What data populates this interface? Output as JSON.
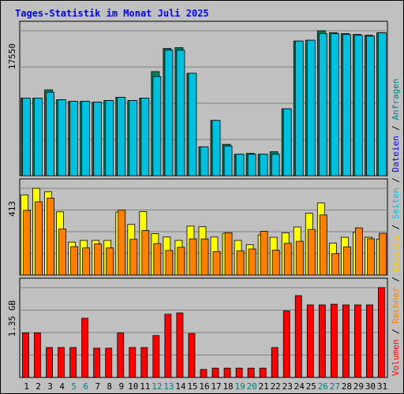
{
  "title": "Tages-Statistik im Monat Juli 2025",
  "colors": {
    "background": "#c0c0c0",
    "title": "#0000ff",
    "weekday_label": "#000000",
    "weekend_label": "#008080",
    "hits": "#00805c",
    "files": "#0000ff",
    "pages": "#00c0e0",
    "visits": "#ffff00",
    "sites": "#ff8000",
    "kbytes": "#ff0000"
  },
  "legend": {
    "top": [
      {
        "text": "Anfragen",
        "color": "#008080"
      },
      {
        "text": "Dateien",
        "color": "#0000ff"
      },
      {
        "text": "Seiten",
        "color": "#00c0e0"
      },
      {
        "text": "Besuche",
        "color": "#ffcc00"
      },
      {
        "text": "Rechner",
        "color": "#ff8000"
      },
      {
        "text": "Volumen",
        "color": "#ff0000"
      }
    ],
    "separator": "/"
  },
  "chart_data": [
    {
      "type": "bar",
      "panel": "top",
      "scale_label": "17550",
      "ylim": [
        0,
        17550
      ],
      "categories": [
        "1",
        "2",
        "3",
        "4",
        "5",
        "6",
        "7",
        "8",
        "9",
        "10",
        "11",
        "12",
        "13",
        "14",
        "15",
        "16",
        "17",
        "18",
        "19",
        "20",
        "21",
        "22",
        "23",
        "24",
        "25",
        "26",
        "27",
        "28",
        "29",
        "30",
        "31"
      ],
      "weekend_days": [
        "5",
        "6",
        "12",
        "13",
        "19",
        "20",
        "26",
        "27"
      ],
      "series": [
        {
          "name": "Anfragen",
          "values": [
            9400,
            9400,
            10400,
            9200,
            9000,
            9000,
            8900,
            9100,
            9500,
            9100,
            9400,
            12600,
            15400,
            15500,
            12400,
            3500,
            6700,
            3800,
            2600,
            2700,
            2600,
            2900,
            8100,
            16300,
            16400,
            17550,
            17300,
            17200,
            17100,
            17000,
            17300
          ]
        },
        {
          "name": "Dateien",
          "values": [
            7200,
            7200,
            7300,
            7000,
            7000,
            6900,
            6700,
            7000,
            7300,
            7000,
            7200,
            7300,
            7400,
            7400,
            7300,
            1200,
            1200,
            1200,
            1200,
            1100,
            1200,
            1200,
            6500,
            8100,
            8000,
            8500,
            8400,
            8300,
            8200,
            8400,
            8400
          ]
        },
        {
          "name": "Seiten",
          "values": [
            9400,
            9400,
            10100,
            9200,
            9000,
            9000,
            8900,
            9100,
            9500,
            9100,
            9400,
            12000,
            15200,
            15200,
            12400,
            3500,
            6700,
            3600,
            2600,
            2600,
            2600,
            2600,
            8100,
            16300,
            16400,
            17200,
            17200,
            17100,
            17000,
            16900,
            17300
          ]
        }
      ]
    },
    {
      "type": "bar",
      "panel": "middle",
      "scale_label": "413",
      "ylim": [
        0,
        413
      ],
      "categories": [
        "1",
        "2",
        "3",
        "4",
        "5",
        "6",
        "7",
        "8",
        "9",
        "10",
        "11",
        "12",
        "13",
        "14",
        "15",
        "16",
        "17",
        "18",
        "19",
        "20",
        "21",
        "22",
        "23",
        "24",
        "25",
        "26",
        "27",
        "28",
        "29",
        "30",
        "31"
      ],
      "series": [
        {
          "name": "Besuche",
          "values": [
            382,
            413,
            397,
            301,
            157,
            165,
            165,
            165,
            300,
            241,
            302,
            197,
            181,
            165,
            233,
            230,
            181,
            199,
            165,
            145,
            191,
            180,
            201,
            229,
            294,
            343,
            152,
            180,
            203,
            180,
            171
          ]
        },
        {
          "name": "Rechner",
          "values": [
            308,
            349,
            366,
            219,
            135,
            129,
            148,
            129,
            310,
            170,
            212,
            150,
            117,
            132,
            172,
            172,
            111,
            202,
            115,
            124,
            208,
            118,
            151,
            161,
            217,
            286,
            102,
            134,
            225,
            173,
            199
          ]
        }
      ]
    },
    {
      "type": "bar",
      "panel": "bottom",
      "scale_label": "1.35 GB",
      "ylim": [
        0,
        1.35
      ],
      "categories": [
        "1",
        "2",
        "3",
        "4",
        "5",
        "6",
        "7",
        "8",
        "9",
        "10",
        "11",
        "12",
        "13",
        "14",
        "15",
        "16",
        "17",
        "18",
        "19",
        "20",
        "21",
        "22",
        "23",
        "24",
        "25",
        "26",
        "27",
        "28",
        "29",
        "30",
        "31"
      ],
      "series": [
        {
          "name": "Volumen",
          "values": [
            0.67,
            0.67,
            0.45,
            0.45,
            0.45,
            0.89,
            0.44,
            0.44,
            0.67,
            0.45,
            0.45,
            0.63,
            0.95,
            0.97,
            0.66,
            0.12,
            0.14,
            0.14,
            0.14,
            0.14,
            0.14,
            0.45,
            1.0,
            1.23,
            1.09,
            1.09,
            1.1,
            1.09,
            1.09,
            1.09,
            1.35
          ]
        }
      ]
    }
  ]
}
